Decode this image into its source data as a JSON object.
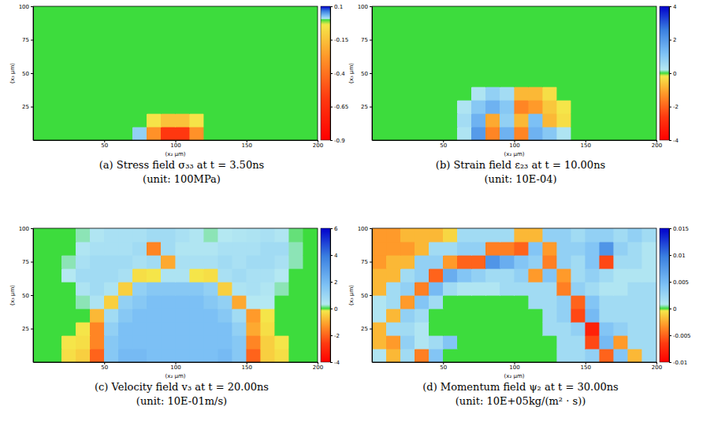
{
  "chart_data": [
    {
      "type": "heatmap",
      "title": "(a) Stress field σ₃₃ at t = 3.50ns",
      "subtitle": "(unit: 100MPa)",
      "x_label": "(x₂ µm)",
      "y_label": "(x₃ µm)",
      "xlim": [
        0,
        200
      ],
      "ylim": [
        0,
        100
      ],
      "xticks": [
        50,
        100,
        150,
        200
      ],
      "yticks": [
        25,
        50,
        75,
        100
      ],
      "x": [
        5,
        15,
        25,
        35,
        45,
        55,
        65,
        75,
        85,
        95,
        105,
        115,
        125,
        135,
        145,
        155,
        165,
        175,
        185,
        195
      ],
      "y": [
        5,
        15,
        25,
        35,
        45,
        55,
        65,
        75,
        85,
        95
      ],
      "cells": [
        [
          0,
          0,
          0,
          0,
          0,
          0,
          0,
          0.02,
          -0.3,
          -0.6,
          -0.6,
          -0.3,
          0,
          0,
          0,
          0,
          0,
          0,
          0,
          0
        ],
        [
          0,
          0,
          0,
          0,
          0,
          0,
          0,
          0,
          -0.05,
          -0.15,
          -0.15,
          -0.05,
          0,
          0,
          0,
          0,
          0,
          0,
          0,
          0
        ],
        [
          0,
          0,
          0,
          0,
          0,
          0,
          0,
          0,
          0,
          0,
          0,
          0,
          0,
          0,
          0,
          0,
          0,
          0,
          0,
          0
        ],
        [
          0,
          0,
          0,
          0,
          0,
          0,
          0,
          0,
          0,
          0,
          0,
          0,
          0,
          0,
          0,
          0,
          0,
          0,
          0,
          0
        ],
        [
          0,
          0,
          0,
          0,
          0,
          0,
          0,
          0,
          0,
          0,
          0,
          0,
          0,
          0,
          0,
          0,
          0,
          0,
          0,
          0
        ],
        [
          0,
          0,
          0,
          0,
          0,
          0,
          0,
          0,
          0,
          0,
          0,
          0,
          0,
          0,
          0,
          0,
          0,
          0,
          0,
          0
        ],
        [
          0,
          0,
          0,
          0,
          0,
          0,
          0,
          0,
          0,
          0,
          0,
          0,
          0,
          0,
          0,
          0,
          0,
          0,
          0,
          0
        ],
        [
          0,
          0,
          0,
          0,
          0,
          0,
          0,
          0,
          0,
          0,
          0,
          0,
          0,
          0,
          0,
          0,
          0,
          0,
          0,
          0
        ],
        [
          0,
          0,
          0,
          0,
          0,
          0,
          0,
          0,
          0,
          0,
          0,
          0,
          0,
          0,
          0,
          0,
          0,
          0,
          0,
          0
        ],
        [
          0,
          0,
          0,
          0,
          0,
          0,
          0,
          0,
          0,
          0,
          0,
          0,
          0,
          0,
          0,
          0,
          0,
          0,
          0,
          0
        ]
      ],
      "colorbar_range": [
        -0.9,
        0.1
      ],
      "colorbar_ticks": [
        0.1,
        -0.15,
        -0.4,
        -0.65,
        -0.9
      ]
    },
    {
      "type": "heatmap",
      "title": "(b) Strain field ε₂₃ at t = 10.00ns",
      "subtitle": "(unit: 10E-04)",
      "x_label": "(x₂ µm)",
      "y_label": "(x₃ µm)",
      "xlim": [
        0,
        200
      ],
      "ylim": [
        0,
        100
      ],
      "xticks": [
        50,
        100,
        150,
        200
      ],
      "yticks": [
        25,
        50,
        75,
        100
      ],
      "x": [
        5,
        15,
        25,
        35,
        45,
        55,
        65,
        75,
        85,
        95,
        105,
        115,
        125,
        135,
        145,
        155,
        165,
        175,
        185,
        195
      ],
      "y": [
        5,
        15,
        25,
        35,
        45,
        55,
        65,
        75,
        85,
        95
      ],
      "cells": [
        [
          0,
          0,
          0,
          0,
          0,
          0,
          0.3,
          2.0,
          -1.5,
          1.5,
          -1.5,
          1.5,
          1.0,
          0.3,
          0,
          0,
          0,
          0,
          0,
          0
        ],
        [
          0,
          0,
          0,
          0,
          0,
          0,
          0.5,
          1.5,
          -1.0,
          0.8,
          -0.8,
          1.2,
          -0.8,
          -0.3,
          0,
          0,
          0,
          0,
          0,
          0
        ],
        [
          0,
          0,
          0,
          0,
          0,
          0,
          0.3,
          1.0,
          1.5,
          1.0,
          -1.5,
          -1.2,
          -0.6,
          -0.2,
          0,
          0,
          0,
          0,
          0,
          0
        ],
        [
          0,
          0,
          0,
          0,
          0,
          0,
          0,
          0.3,
          0.8,
          0.5,
          -0.8,
          -0.8,
          -0.3,
          0,
          0,
          0,
          0,
          0,
          0,
          0
        ],
        [
          0,
          0,
          0,
          0,
          0,
          0,
          0,
          0,
          0,
          0,
          0,
          0,
          0,
          0,
          0,
          0,
          0,
          0,
          0,
          0
        ],
        [
          0,
          0,
          0,
          0,
          0,
          0,
          0,
          0,
          0,
          0,
          0,
          0,
          0,
          0,
          0,
          0,
          0,
          0,
          0,
          0
        ],
        [
          0,
          0,
          0,
          0,
          0,
          0,
          0,
          0,
          0,
          0,
          0,
          0,
          0,
          0,
          0,
          0,
          0,
          0,
          0,
          0
        ],
        [
          0,
          0,
          0,
          0,
          0,
          0,
          0,
          0,
          0,
          0,
          0,
          0,
          0,
          0,
          0,
          0,
          0,
          0,
          0,
          0
        ],
        [
          0,
          0,
          0,
          0,
          0,
          0,
          0,
          0,
          0,
          0,
          0,
          0,
          0,
          0,
          0,
          0,
          0,
          0,
          0,
          0
        ],
        [
          0,
          0,
          0,
          0,
          0,
          0,
          0,
          0,
          0,
          0,
          0,
          0,
          0,
          0,
          0,
          0,
          0,
          0,
          0,
          0
        ]
      ],
      "colorbar_range": [
        -4,
        4
      ],
      "colorbar_ticks": [
        4,
        2,
        0,
        -2,
        -4
      ]
    },
    {
      "type": "heatmap",
      "title": "(c) Velocity field v₃ at t = 20.00ns",
      "subtitle": "(unit: 10E-01m/s)",
      "x_label": "(x₂ µm)",
      "y_label": "(x₃ µm)",
      "xlim": [
        0,
        200
      ],
      "ylim": [
        0,
        100
      ],
      "xticks": [
        50,
        100,
        150,
        200
      ],
      "yticks": [
        25,
        50,
        75,
        100
      ],
      "x": [
        5,
        15,
        25,
        35,
        45,
        55,
        65,
        75,
        85,
        95,
        105,
        115,
        125,
        135,
        145,
        155,
        165,
        175,
        185,
        195
      ],
      "y": [
        5,
        15,
        25,
        35,
        45,
        55,
        65,
        75,
        85,
        95
      ],
      "cells": [
        [
          0,
          0,
          -0.3,
          -0.5,
          -2.0,
          1.5,
          2.0,
          2.0,
          1.8,
          1.8,
          1.8,
          1.8,
          1.8,
          2.0,
          1.5,
          -2.0,
          -0.5,
          -0.3,
          0,
          0
        ],
        [
          0,
          0,
          -0.2,
          -0.3,
          -1.5,
          1.5,
          1.8,
          1.8,
          1.8,
          1.8,
          1.8,
          1.8,
          1.8,
          1.8,
          1.5,
          -1.5,
          -0.5,
          -0.2,
          0,
          0
        ],
        [
          0,
          0,
          0,
          -0.2,
          -1.5,
          1.2,
          1.8,
          1.8,
          1.8,
          1.8,
          1.8,
          1.8,
          1.8,
          1.8,
          1.2,
          -1.0,
          -0.3,
          0,
          0,
          0
        ],
        [
          0,
          0,
          0,
          0,
          -0.8,
          0.8,
          1.5,
          1.8,
          1.8,
          1.8,
          1.8,
          1.8,
          1.8,
          1.5,
          0.8,
          -1.2,
          -0.2,
          0,
          0,
          0
        ],
        [
          0,
          0,
          0,
          0.2,
          0.5,
          -0.5,
          1.2,
          1.5,
          1.8,
          1.8,
          1.8,
          1.8,
          1.5,
          1.2,
          -1.0,
          0.3,
          0.3,
          0,
          0,
          0
        ],
        [
          0,
          0,
          0,
          0.5,
          0.8,
          0.5,
          -0.5,
          1.2,
          1.5,
          1.5,
          1.5,
          1.5,
          1.2,
          -0.5,
          0.5,
          0.6,
          0.4,
          0.2,
          0,
          0
        ],
        [
          0,
          0,
          0.3,
          0.8,
          0.8,
          0.8,
          0.6,
          -0.3,
          -0.2,
          0.5,
          0.5,
          -0.2,
          -0.3,
          0.6,
          0.8,
          0.6,
          0.6,
          0.3,
          0,
          0
        ],
        [
          0,
          0,
          0.2,
          0.6,
          0.8,
          0.8,
          0.8,
          0.6,
          0.8,
          -1.0,
          0.6,
          0.6,
          0.6,
          0.8,
          0.6,
          0.8,
          0.8,
          0.6,
          0.2,
          0
        ],
        [
          0,
          0,
          0,
          0.4,
          0.6,
          0.6,
          0.6,
          0.8,
          -1.5,
          0.8,
          0.4,
          0.4,
          0.4,
          0.6,
          0.6,
          0.6,
          0.8,
          0.8,
          0.2,
          0
        ],
        [
          0,
          0,
          0,
          0.2,
          0.4,
          0.6,
          0.6,
          0.6,
          0.8,
          0.8,
          0.6,
          0.4,
          0.2,
          0.3,
          0.4,
          0.5,
          0.6,
          0.4,
          0.1,
          0
        ]
      ],
      "colorbar_range": [
        -4,
        6
      ],
      "colorbar_ticks": [
        6,
        4,
        2,
        0,
        -2,
        -4
      ]
    },
    {
      "type": "heatmap",
      "title": "(d) Momentum field ψ₂ at t = 30.00ns",
      "subtitle": "(unit: 10E+05kg/(m² · s))",
      "x_label": "(x₂ µm)",
      "y_label": "(x₃ µm)",
      "xlim": [
        0,
        200
      ],
      "ylim": [
        0,
        100
      ],
      "xticks": [
        50,
        100,
        150,
        200
      ],
      "yticks": [
        25,
        50,
        75,
        100
      ],
      "x": [
        5,
        15,
        25,
        35,
        45,
        55,
        65,
        75,
        85,
        95,
        105,
        115,
        125,
        135,
        145,
        155,
        165,
        175,
        185,
        195
      ],
      "y": [
        5,
        15,
        25,
        35,
        45,
        55,
        65,
        75,
        85,
        95
      ],
      "cells": [
        [
          0.001,
          -0.002,
          0.002,
          -0.004,
          0.004,
          0,
          0,
          0,
          0,
          0,
          0,
          0,
          0,
          0.002,
          0.002,
          0.003,
          -0.005,
          0.004,
          -0.002,
          0.002
        ],
        [
          -0.002,
          -0.003,
          0.003,
          0.001,
          0.002,
          0.004,
          0,
          0,
          0,
          0,
          0,
          0,
          0,
          0.002,
          0.002,
          -0.006,
          0.005,
          -0.003,
          0.002,
          0.002
        ],
        [
          -0.002,
          0.002,
          0.002,
          0.001,
          0,
          0,
          0,
          0,
          0,
          0,
          0,
          0,
          0.002,
          0.002,
          0.003,
          -0.008,
          0.004,
          0.003,
          0.002,
          0.002
        ],
        [
          0.001,
          -0.002,
          0.003,
          0.002,
          0,
          0,
          0,
          0,
          0,
          0,
          0,
          0,
          0.002,
          0.003,
          -0.006,
          0.005,
          0.002,
          0.002,
          0.002,
          0.002
        ],
        [
          0.001,
          0.002,
          -0.003,
          0.004,
          0.002,
          0,
          0,
          0,
          0,
          0,
          0,
          0.002,
          0.002,
          0.003,
          -0.005,
          0.004,
          0.002,
          0.002,
          0.002,
          0.002
        ],
        [
          -0.002,
          0.002,
          0.003,
          -0.004,
          0.005,
          0.002,
          0.001,
          0.001,
          0.001,
          0.002,
          0.002,
          0.002,
          0.002,
          -0.004,
          0.003,
          0.002,
          0.001,
          0.001,
          0.002,
          0.002
        ],
        [
          -0.002,
          -0.002,
          0.002,
          0.003,
          -0.005,
          0.006,
          0.004,
          0.003,
          0.002,
          0.002,
          0.003,
          -0.003,
          0.004,
          -0.003,
          0.002,
          0.003,
          0.002,
          0.001,
          0.001,
          0.001
        ],
        [
          -0.003,
          -0.002,
          -0.002,
          0.003,
          0.003,
          -0.003,
          -0.005,
          -0.005,
          0.008,
          0.006,
          0.004,
          0.003,
          -0.004,
          0.003,
          0.002,
          0.004,
          -0.006,
          0.002,
          0.002,
          0.001
        ],
        [
          -0.003,
          -0.003,
          -0.003,
          -0.002,
          0.002,
          0.002,
          0.003,
          0.003,
          -0.004,
          -0.004,
          -0.005,
          0.004,
          -0.003,
          0.003,
          0.003,
          0.004,
          0.008,
          0.003,
          0.002,
          0.001
        ],
        [
          -0.003,
          -0.003,
          -0.002,
          -0.002,
          -0.002,
          -0.001,
          0.002,
          0.002,
          0.002,
          0.002,
          -0.002,
          -0.002,
          0.003,
          0.003,
          0.002,
          0.003,
          0.003,
          0.002,
          0.003,
          0.002
        ]
      ],
      "colorbar_range": [
        -0.01,
        0.015
      ],
      "colorbar_ticks": [
        0.015,
        0.01,
        0.005,
        0,
        -0.005,
        -0.01
      ]
    }
  ]
}
